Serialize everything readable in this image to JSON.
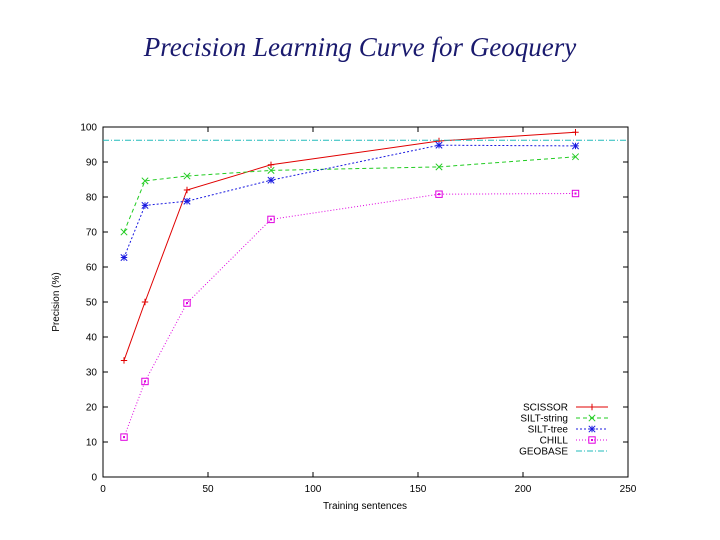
{
  "chart_data": {
    "type": "line",
    "title": "Precision Learning Curve for Geoquery",
    "xlabel": "Training sentences",
    "ylabel": "Precision (%)",
    "xlim": [
      0,
      250
    ],
    "ylim": [
      0,
      100
    ],
    "xticks": [
      "0",
      "50",
      "100",
      "150",
      "200",
      "250"
    ],
    "yticks": [
      "0",
      "10",
      "20",
      "30",
      "40",
      "50",
      "60",
      "70",
      "80",
      "90",
      "100"
    ],
    "legend_position": "bottom-right",
    "series": [
      {
        "name": "SCISSOR",
        "color": "#e00000",
        "dash": "",
        "marker": "plus",
        "x": [
          10,
          20,
          40,
          80,
          160,
          225
        ],
        "y": [
          33.3,
          50,
          82,
          89.2,
          96,
          98.5
        ]
      },
      {
        "name": "SILT-string",
        "color": "#22cc22",
        "dash": "4,3",
        "marker": "cross",
        "x": [
          10,
          20,
          40,
          80,
          160,
          225
        ],
        "y": [
          70,
          84.6,
          86,
          87.6,
          88.6,
          91.5
        ]
      },
      {
        "name": "SILT-tree",
        "color": "#1a1ae0",
        "dash": "2,2",
        "marker": "star",
        "x": [
          10,
          20,
          40,
          80,
          160,
          225
        ],
        "y": [
          62.7,
          77.6,
          78.8,
          84.8,
          94.8,
          94.6
        ]
      },
      {
        "name": "CHILL",
        "color": "#e000e0",
        "dash": "1,2",
        "marker": "square",
        "x": [
          10,
          20,
          40,
          80,
          160,
          225
        ],
        "y": [
          11.4,
          27.3,
          49.7,
          73.6,
          80.8,
          81
        ]
      },
      {
        "name": "GEOBASE",
        "color": "#22bbbb",
        "dash": "6,2,1,2",
        "marker": "none",
        "x": [
          0,
          250
        ],
        "y": [
          96.2,
          96.2
        ]
      }
    ]
  }
}
